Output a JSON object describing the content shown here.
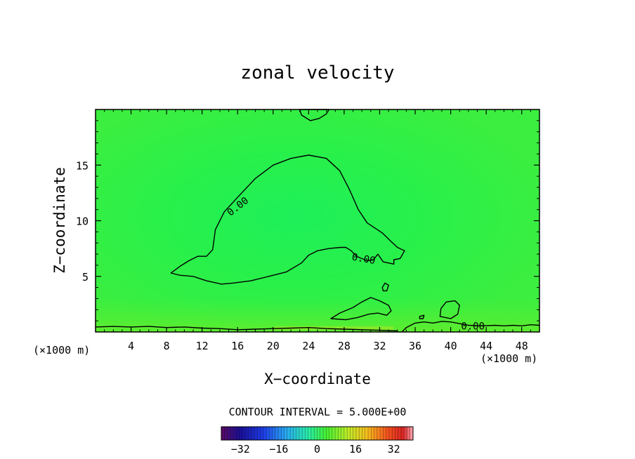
{
  "chart_data": {
    "type": "contour",
    "title": "zonal velocity",
    "xlabel": "X−coordinate",
    "ylabel": "Z−coordinate",
    "x_unit_left": "(×1000 m)",
    "x_unit_right": "(×1000 m)",
    "xlim": [
      0,
      50
    ],
    "ylim": [
      0,
      20
    ],
    "xticks": [
      4,
      8,
      12,
      16,
      20,
      24,
      28,
      32,
      36,
      40,
      44,
      48
    ],
    "yticks": [
      5,
      10,
      15
    ],
    "contour_interval_text": "CONTOUR INTERVAL = 5.000E+00",
    "contour_labels": [
      {
        "text": "0.00",
        "x": 16.0,
        "y": 11.3,
        "angle": -38
      },
      {
        "text": "0.00",
        "x": 30.2,
        "y": 6.6,
        "angle": 10
      },
      {
        "text": "0.00",
        "x": 42.5,
        "y": 0.55,
        "angle": 0
      }
    ],
    "colorbar": {
      "min": -40,
      "max": 40,
      "ticks": [
        {
          "value": -32,
          "label": "−32"
        },
        {
          "value": -16,
          "label": "−16"
        },
        {
          "value": 0,
          "label": "0"
        },
        {
          "value": 16,
          "label": "16"
        },
        {
          "value": 32,
          "label": "32"
        }
      ]
    },
    "contours": [
      {
        "name": "zero-contour-main",
        "closed": true,
        "points": [
          [
            8.5,
            5.3
          ],
          [
            9.5,
            5.9
          ],
          [
            10.5,
            6.4
          ],
          [
            11.5,
            6.8
          ],
          [
            12.5,
            6.8
          ],
          [
            13.2,
            7.4
          ],
          [
            13.5,
            9.2
          ],
          [
            14.5,
            10.8
          ],
          [
            16,
            12.1
          ],
          [
            18,
            13.8
          ],
          [
            20,
            15
          ],
          [
            22,
            15.6
          ],
          [
            24,
            15.9
          ],
          [
            26,
            15.6
          ],
          [
            27.5,
            14.5
          ],
          [
            28.6,
            12.8
          ],
          [
            29.6,
            11
          ],
          [
            30.6,
            9.8
          ],
          [
            32.3,
            8.9
          ],
          [
            33.2,
            8.2
          ],
          [
            34,
            7.6
          ],
          [
            34.8,
            7.3
          ],
          [
            34.3,
            6.6
          ],
          [
            33.6,
            6.5
          ],
          [
            33.6,
            6.1
          ],
          [
            32.4,
            6.3
          ],
          [
            31.8,
            7.0
          ],
          [
            31.3,
            6.5
          ],
          [
            30.6,
            6.4
          ],
          [
            29.4,
            6.8
          ],
          [
            28.8,
            7.3
          ],
          [
            28.2,
            7.6
          ],
          [
            27.6,
            7.6
          ],
          [
            26.3,
            7.5
          ],
          [
            25,
            7.3
          ],
          [
            24,
            6.9
          ],
          [
            23.2,
            6.2
          ],
          [
            21.5,
            5.4
          ],
          [
            19.5,
            5.0
          ],
          [
            17.5,
            4.6
          ],
          [
            15.5,
            4.4
          ],
          [
            14.2,
            4.3
          ],
          [
            12.5,
            4.6
          ],
          [
            11,
            5.0
          ],
          [
            9.5,
            5.1
          ]
        ]
      },
      {
        "name": "zero-contour-top",
        "closed": true,
        "points": [
          [
            23,
            20
          ],
          [
            23.2,
            19.5
          ],
          [
            24.2,
            19.0
          ],
          [
            25.2,
            19.2
          ],
          [
            26.0,
            19.6
          ],
          [
            26.3,
            20
          ]
        ]
      },
      {
        "name": "zero-contour-low-mid",
        "closed": true,
        "points": [
          [
            26.5,
            1.2
          ],
          [
            27.5,
            1.7
          ],
          [
            29,
            2.2
          ],
          [
            30,
            2.7
          ],
          [
            31,
            3.1
          ],
          [
            32,
            2.8
          ],
          [
            33,
            2.4
          ],
          [
            33.3,
            1.9
          ],
          [
            32.8,
            1.5
          ],
          [
            31.8,
            1.7
          ],
          [
            30.8,
            1.6
          ],
          [
            29.5,
            1.3
          ],
          [
            28.2,
            1.1
          ]
        ]
      },
      {
        "name": "zero-contour-small-1",
        "closed": true,
        "points": [
          [
            32.3,
            4.0
          ],
          [
            32.6,
            4.4
          ],
          [
            33.0,
            4.2
          ],
          [
            32.8,
            3.7
          ],
          [
            32.4,
            3.7
          ]
        ]
      },
      {
        "name": "zero-contour-small-2",
        "closed": true,
        "points": [
          [
            38.8,
            1.4
          ],
          [
            38.9,
            2.1
          ],
          [
            39.5,
            2.7
          ],
          [
            40.5,
            2.8
          ],
          [
            41,
            2.4
          ],
          [
            40.8,
            1.6
          ],
          [
            40,
            1.2
          ]
        ]
      },
      {
        "name": "zero-contour-small-3",
        "closed": true,
        "points": [
          [
            36.5,
            1.4
          ],
          [
            37.0,
            1.5
          ],
          [
            36.9,
            1.2
          ],
          [
            36.5,
            1.2
          ]
        ]
      },
      {
        "name": "zero-contour-bottom-left",
        "closed": false,
        "points": [
          [
            0,
            0.45
          ],
          [
            2,
            0.5
          ],
          [
            4,
            0.45
          ],
          [
            6,
            0.5
          ],
          [
            8,
            0.4
          ],
          [
            10,
            0.45
          ],
          [
            12,
            0.35
          ],
          [
            14,
            0.3
          ],
          [
            16,
            0.2
          ],
          [
            18,
            0.25
          ],
          [
            20,
            0.3
          ],
          [
            22,
            0.35
          ],
          [
            24,
            0.4
          ],
          [
            26,
            0.3
          ],
          [
            28,
            0.25
          ],
          [
            30,
            0.2
          ],
          [
            32,
            0.15
          ],
          [
            34,
            0.1
          ]
        ]
      },
      {
        "name": "zero-contour-bottom-right",
        "closed": false,
        "points": [
          [
            34.5,
            0.0
          ],
          [
            35,
            0.4
          ],
          [
            36,
            0.8
          ],
          [
            37,
            0.9
          ],
          [
            38,
            0.8
          ],
          [
            39,
            0.95
          ],
          [
            40,
            0.9
          ],
          [
            41,
            0.75
          ],
          [
            42,
            0.6
          ],
          [
            43.5,
            0.55
          ],
          [
            45,
            0.6
          ],
          [
            46,
            0.55
          ],
          [
            47,
            0.6
          ],
          [
            48,
            0.55
          ],
          [
            49,
            0.65
          ],
          [
            50,
            0.6
          ]
        ]
      }
    ]
  }
}
